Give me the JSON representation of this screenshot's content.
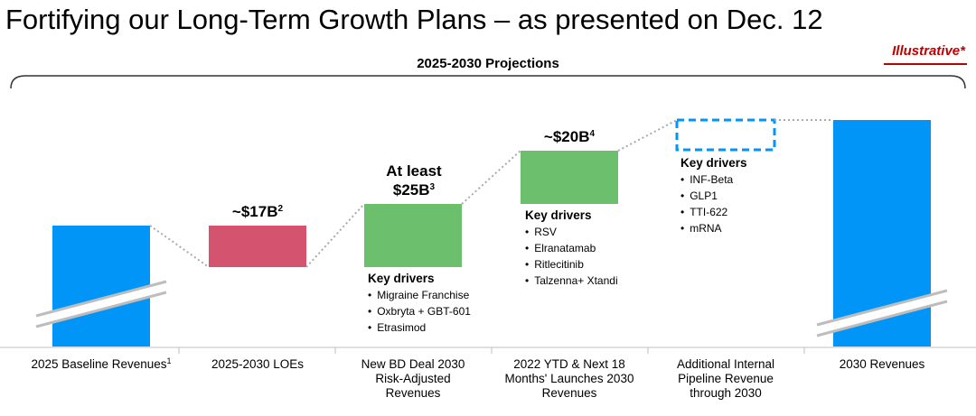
{
  "page": {
    "title": "Fortifying our Long-Term Growth Plans – as presented on Dec. 12",
    "tag": "Illustrative*",
    "brace_label": "2025-2030 Projections"
  },
  "colors": {
    "baseline": "#0095f7",
    "loe": "#d4546f",
    "increase": "#6bbf6d",
    "pipeline_outline": "#0095f7",
    "tag": "#c00000"
  },
  "chart_data": {
    "type": "bar",
    "subtype": "waterfall",
    "axis_break": true,
    "categories": [
      {
        "label": "2025 Baseline Revenues",
        "sup": "1"
      },
      {
        "label": "2025-2030 LOEs",
        "sup": ""
      },
      {
        "label": "New BD Deal 2030 Risk-Adjusted Revenues",
        "sup": ""
      },
      {
        "label": "2022 YTD & Next 18 Months' Launches 2030 Revenues",
        "sup": ""
      },
      {
        "label": "Additional Internal Pipeline Revenue through 2030",
        "sup": ""
      },
      {
        "label": "2030 Revenues",
        "sup": ""
      }
    ],
    "bars": [
      {
        "kind": "total",
        "label": "",
        "sup": "",
        "value": null,
        "style": "solid",
        "color": "#0095f7"
      },
      {
        "kind": "decrease",
        "label": "~$17B",
        "sup": "2",
        "value": -17,
        "style": "solid",
        "color": "#d4546f"
      },
      {
        "kind": "increase",
        "label": "At least $25B",
        "sup": "3",
        "value": 25,
        "style": "solid",
        "color": "#6bbf6d"
      },
      {
        "kind": "increase",
        "label": "~$20B",
        "sup": "4",
        "value": 20,
        "style": "solid",
        "color": "#6bbf6d"
      },
      {
        "kind": "increase",
        "label": "",
        "sup": "",
        "value": null,
        "style": "dashed-outline",
        "color": "#0095f7"
      },
      {
        "kind": "total",
        "label": "",
        "sup": "",
        "value": null,
        "style": "solid",
        "color": "#0095f7"
      }
    ],
    "value_labels": [
      {
        "lines": [
          "~$17B"
        ],
        "sup": "2"
      },
      {
        "lines": [
          "At least",
          "$25B"
        ],
        "sup": "3"
      },
      {
        "lines": [
          "~$20B"
        ],
        "sup": "4"
      }
    ],
    "key_drivers": [
      {
        "heading": "Key drivers",
        "items": [
          "Migraine Franchise",
          "Oxbryta + GBT-601",
          "Etrasimod"
        ]
      },
      {
        "heading": "Key drivers",
        "items": [
          "RSV",
          "Elranatamab",
          "Ritlecitinib",
          "Talzenna+ Xtandi"
        ]
      },
      {
        "heading": "Key drivers",
        "items": [
          "INF-Beta",
          "GLP1",
          "TTI-622",
          "mRNA"
        ]
      }
    ]
  }
}
